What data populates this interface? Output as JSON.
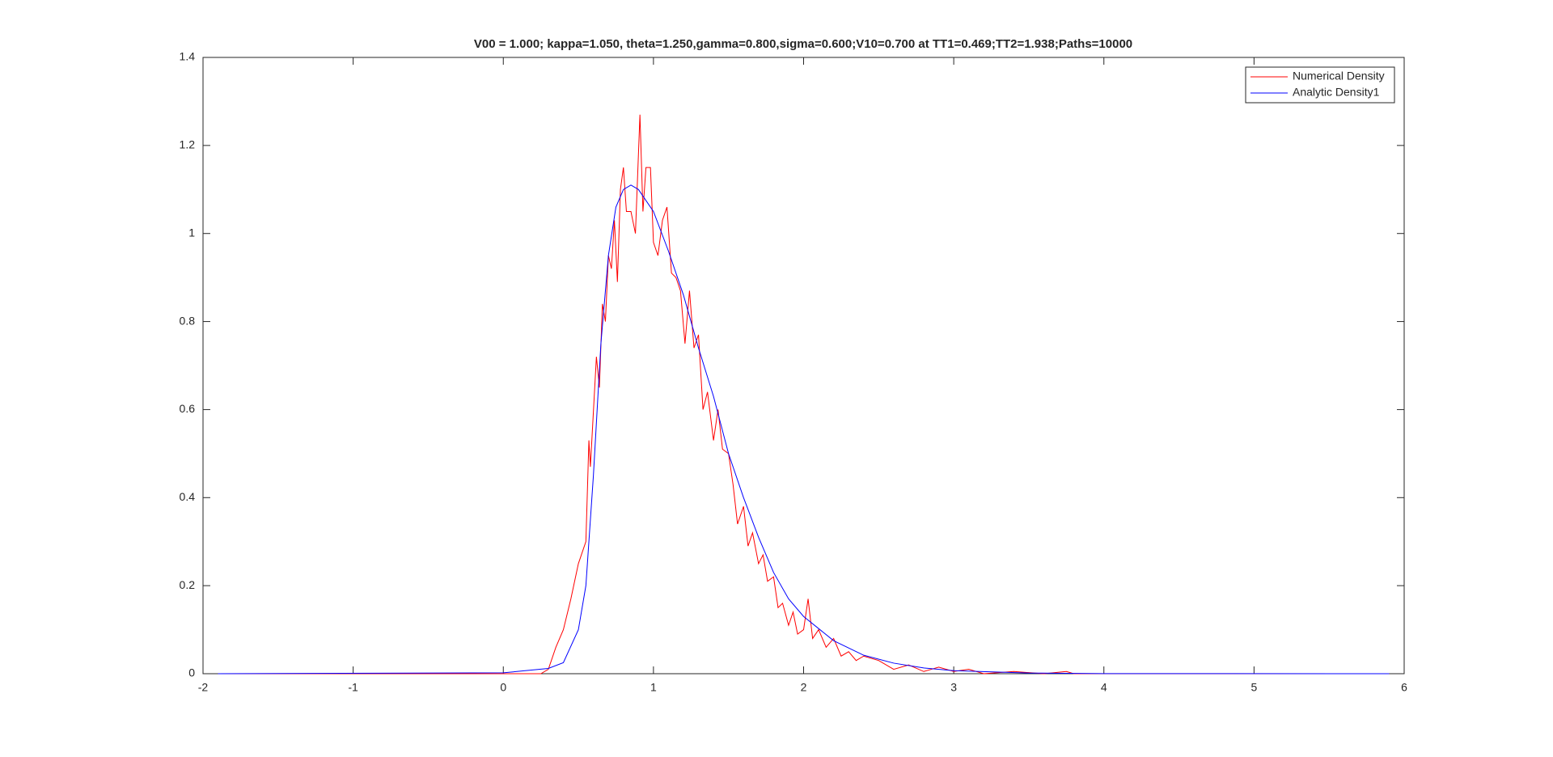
{
  "chart_data": {
    "type": "line",
    "title": "V00 = 1.000; kappa=1.050, theta=1.250,gamma=0.800,sigma=0.600;V10=0.700 at TT1=0.469;TT2=1.938;Paths=10000",
    "xlim": [
      -2,
      6
    ],
    "xticks": [
      -2,
      -1,
      0,
      1,
      2,
      3,
      4,
      5,
      6
    ],
    "ylim": [
      0,
      1.4
    ],
    "yticks": [
      0,
      0.2,
      0.4,
      0.6,
      0.8,
      1,
      1.2,
      1.4
    ],
    "grid": false,
    "legend": "top-right",
    "series": [
      {
        "name": "Numerical Density",
        "color": "#ff0000",
        "x": [
          -1.9,
          0.25,
          0.3,
          0.35,
          0.4,
          0.45,
          0.5,
          0.55,
          0.57,
          0.58,
          0.62,
          0.64,
          0.66,
          0.68,
          0.7,
          0.72,
          0.74,
          0.76,
          0.78,
          0.8,
          0.82,
          0.85,
          0.88,
          0.91,
          0.93,
          0.95,
          0.98,
          1.0,
          1.03,
          1.06,
          1.09,
          1.12,
          1.15,
          1.18,
          1.21,
          1.24,
          1.27,
          1.3,
          1.33,
          1.36,
          1.4,
          1.43,
          1.46,
          1.5,
          1.53,
          1.56,
          1.6,
          1.63,
          1.66,
          1.7,
          1.73,
          1.76,
          1.8,
          1.83,
          1.86,
          1.9,
          1.93,
          1.96,
          2.0,
          2.03,
          2.06,
          2.1,
          2.15,
          2.2,
          2.25,
          2.3,
          2.35,
          2.4,
          2.5,
          2.6,
          2.7,
          2.8,
          2.9,
          3.0,
          3.1,
          3.2,
          3.4,
          3.6,
          3.75,
          3.8,
          5.9
        ],
        "values": [
          0,
          0,
          0.01,
          0.06,
          0.1,
          0.17,
          0.25,
          0.3,
          0.53,
          0.47,
          0.72,
          0.65,
          0.84,
          0.8,
          0.95,
          0.92,
          1.03,
          0.89,
          1.1,
          1.15,
          1.05,
          1.05,
          1.0,
          1.27,
          1.05,
          1.15,
          1.15,
          0.98,
          0.95,
          1.03,
          1.06,
          0.91,
          0.9,
          0.87,
          0.75,
          0.87,
          0.74,
          0.77,
          0.6,
          0.64,
          0.53,
          0.6,
          0.51,
          0.5,
          0.43,
          0.34,
          0.38,
          0.29,
          0.32,
          0.25,
          0.27,
          0.21,
          0.22,
          0.15,
          0.16,
          0.11,
          0.14,
          0.09,
          0.1,
          0.17,
          0.08,
          0.1,
          0.06,
          0.08,
          0.04,
          0.05,
          0.03,
          0.04,
          0.03,
          0.01,
          0.02,
          0.005,
          0.015,
          0.005,
          0.01,
          0,
          0.005,
          0,
          0.005,
          0,
          0
        ]
      },
      {
        "name": "Analytic Density1",
        "color": "#0000ff",
        "x": [
          -1.9,
          0.0,
          0.3,
          0.4,
          0.5,
          0.55,
          0.6,
          0.65,
          0.7,
          0.75,
          0.8,
          0.85,
          0.9,
          1.0,
          1.1,
          1.2,
          1.3,
          1.4,
          1.5,
          1.6,
          1.7,
          1.8,
          1.9,
          2.0,
          2.2,
          2.4,
          2.6,
          2.8,
          3.0,
          3.5,
          4.0,
          5.9
        ],
        "values": [
          0,
          0.002,
          0.012,
          0.025,
          0.1,
          0.2,
          0.45,
          0.75,
          0.95,
          1.06,
          1.1,
          1.11,
          1.1,
          1.05,
          0.96,
          0.86,
          0.74,
          0.63,
          0.5,
          0.4,
          0.31,
          0.23,
          0.17,
          0.13,
          0.075,
          0.042,
          0.024,
          0.013,
          0.007,
          0.0015,
          0.0003,
          0
        ]
      }
    ]
  }
}
